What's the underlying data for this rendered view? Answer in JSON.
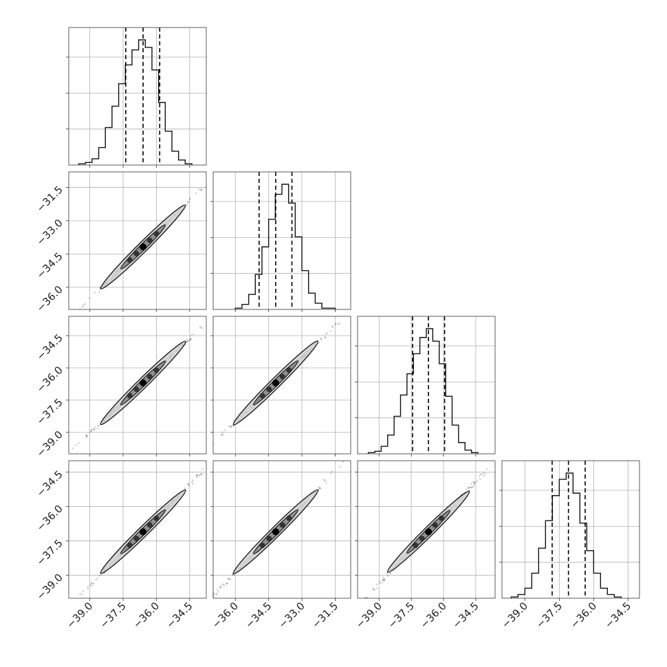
{
  "chart_data": {
    "type": "corner",
    "title": "",
    "grid": true,
    "n_params": 4,
    "params": [
      {
        "index": 0,
        "label": "",
        "range": [
          -39.95,
          -33.75
        ],
        "ticks": [
          -39.0,
          -37.5,
          -36.0,
          -34.5
        ],
        "quantiles": [
          -37.38,
          -36.6,
          -35.85
        ]
      },
      {
        "index": 1,
        "label": "",
        "range": [
          -37.0,
          -30.8
        ],
        "ticks": [
          -36.0,
          -34.5,
          -33.0,
          -31.5
        ],
        "quantiles": [
          -34.93,
          -34.18,
          -33.45
        ]
      },
      {
        "index": 2,
        "label": "",
        "range": [
          -40.0,
          -33.6
        ],
        "ticks": [
          -39.0,
          -37.5,
          -36.0,
          -34.5
        ],
        "quantiles": [
          -37.44,
          -36.7,
          -35.95
        ]
      },
      {
        "index": 3,
        "label": "",
        "range": [
          -40.0,
          -34.0
        ],
        "ticks": [
          -39.0,
          -37.5,
          -36.0,
          -34.5
        ],
        "quantiles": [
          -37.81,
          -37.1,
          -36.37
        ]
      }
    ],
    "histograms": [
      {
        "param": 0,
        "bins": [
          -39.5,
          -39.2,
          -38.9,
          -38.6,
          -38.3,
          -38.0,
          -37.7,
          -37.4,
          -37.1,
          -36.8,
          -36.5,
          -36.2,
          -35.9,
          -35.6,
          -35.3,
          -35.0,
          -34.7,
          -34.4
        ],
        "counts": [
          0.01,
          0.02,
          0.05,
          0.14,
          0.3,
          0.47,
          0.65,
          0.8,
          0.92,
          1.0,
          0.94,
          0.76,
          0.5,
          0.27,
          0.11,
          0.04,
          0.01
        ]
      },
      {
        "param": 1,
        "bins": [
          -36.0,
          -35.7,
          -35.4,
          -35.1,
          -34.8,
          -34.5,
          -34.2,
          -33.9,
          -33.6,
          -33.3,
          -33.0,
          -32.7,
          -32.4,
          -32.1,
          -31.8,
          -31.5
        ],
        "counts": [
          0.01,
          0.04,
          0.12,
          0.28,
          0.5,
          0.72,
          0.92,
          1.0,
          0.85,
          0.58,
          0.31,
          0.13,
          0.05,
          0.01,
          0.01
        ]
      },
      {
        "param": 2,
        "bins": [
          -39.5,
          -39.2,
          -38.9,
          -38.6,
          -38.3,
          -38.0,
          -37.7,
          -37.4,
          -37.1,
          -36.8,
          -36.5,
          -36.2,
          -35.9,
          -35.6,
          -35.3,
          -35.0,
          -34.7,
          -34.4
        ],
        "counts": [
          0.01,
          0.02,
          0.06,
          0.15,
          0.3,
          0.47,
          0.64,
          0.8,
          0.93,
          1.0,
          0.9,
          0.72,
          0.46,
          0.23,
          0.09,
          0.03,
          0.01
        ]
      },
      {
        "param": 3,
        "bins": [
          -39.6,
          -39.3,
          -39.0,
          -38.7,
          -38.4,
          -38.1,
          -37.8,
          -37.5,
          -37.2,
          -36.9,
          -36.6,
          -36.3,
          -36.0,
          -35.7,
          -35.4,
          -35.1,
          -34.8
        ],
        "counts": [
          0.01,
          0.03,
          0.08,
          0.2,
          0.4,
          0.62,
          0.82,
          0.95,
          1.0,
          0.84,
          0.6,
          0.38,
          0.2,
          0.08,
          0.03,
          0.01
        ]
      }
    ],
    "pairs": [
      {
        "x_param": 0,
        "y_param": 1,
        "center": [
          -36.6,
          -34.18
        ],
        "slope": 0.99
      },
      {
        "x_param": 0,
        "y_param": 2,
        "center": [
          -36.6,
          -36.7
        ],
        "slope": 0.98
      },
      {
        "x_param": 1,
        "y_param": 2,
        "center": [
          -34.18,
          -36.7
        ],
        "slope": 0.99
      },
      {
        "x_param": 0,
        "y_param": 3,
        "center": [
          -36.6,
          -37.1
        ],
        "slope": 0.98
      },
      {
        "x_param": 1,
        "y_param": 3,
        "center": [
          -34.18,
          -37.1
        ],
        "slope": 0.99
      },
      {
        "x_param": 2,
        "y_param": 3,
        "center": [
          -36.7,
          -37.1
        ],
        "slope": 0.99
      }
    ]
  }
}
